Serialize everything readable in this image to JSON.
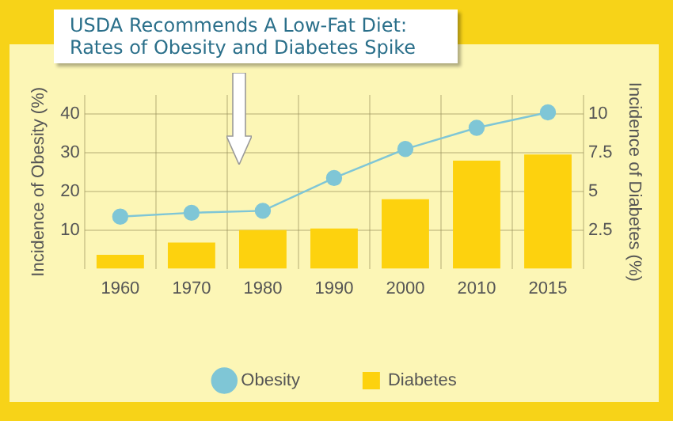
{
  "chart_data": {
    "type": "bar",
    "title": "USDA Recommends A Low-Fat Diet: Rates of Obesity and Diabetes Spike",
    "categories": [
      "1960",
      "1970",
      "1980",
      "1990",
      "2000",
      "2010",
      "2015"
    ],
    "series": [
      {
        "name": "Obesity",
        "type": "line",
        "color": "#7fc6d6",
        "values": [
          13.5,
          14.5,
          15,
          23.5,
          31,
          36.5,
          40.5
        ]
      },
      {
        "name": "Diabetes",
        "axis": "y2",
        "color": "#fdd20e",
        "values": [
          0.9,
          1.7,
          2.5,
          2.6,
          4.5,
          7.0,
          7.4
        ]
      }
    ],
    "ylabel": "Incidence of Obesity (%)",
    "y2label": "Incidence of Diabetes (%)",
    "ylim": [
      0,
      45
    ],
    "yticks": [
      10,
      20,
      30,
      40
    ],
    "y2lim": [
      0,
      11.25
    ],
    "y2ticks": [
      2.5,
      5,
      7.5,
      10
    ],
    "grid": true,
    "legend": "bottom",
    "marker": "circle",
    "line_style": "solid"
  }
}
